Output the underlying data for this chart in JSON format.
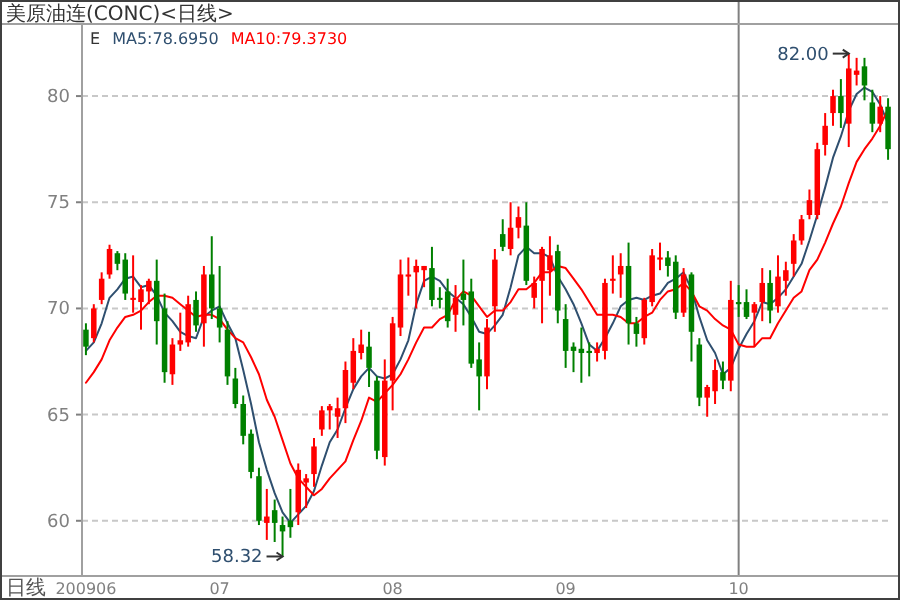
{
  "chart_data": {
    "type": "candlestick",
    "title": "美原油连(CONC)<日线>",
    "xlabel": "日线",
    "legend_title": "E",
    "legend": "top left",
    "grid": "y",
    "categories": [
      "200906",
      null,
      null,
      null,
      null,
      null,
      null,
      null,
      null,
      null,
      null,
      null,
      null,
      null,
      null,
      null,
      null,
      "07",
      null,
      null,
      null,
      null,
      null,
      null,
      null,
      null,
      null,
      null,
      null,
      null,
      null,
      null,
      null,
      null,
      null,
      null,
      null,
      null,
      null,
      "08",
      null,
      null,
      null,
      null,
      null,
      null,
      null,
      null,
      null,
      null,
      null,
      null,
      null,
      null,
      null,
      null,
      null,
      null,
      null,
      null,
      null,
      "09",
      null,
      null,
      null,
      null,
      null,
      null,
      null,
      null,
      null,
      null,
      null,
      null,
      null,
      null,
      null,
      null,
      null,
      null,
      null,
      null,
      null,
      "10",
      null,
      null,
      null,
      null,
      null,
      null,
      null,
      null,
      null,
      null,
      null,
      null,
      null,
      null,
      null,
      null,
      null,
      null,
      null
    ],
    "ohlc": [
      [
        69.0,
        69.3,
        67.8,
        68.2
      ],
      [
        68.6,
        70.2,
        68.4,
        70.0
      ],
      [
        70.4,
        71.7,
        70.2,
        71.4
      ],
      [
        71.6,
        73.0,
        71.4,
        72.8
      ],
      [
        72.6,
        72.7,
        71.8,
        72.1
      ],
      [
        72.3,
        72.6,
        70.4,
        70.7
      ],
      [
        70.4,
        72.5,
        69.8,
        70.5
      ],
      [
        70.3,
        71.1,
        69.0,
        70.9
      ],
      [
        70.8,
        71.4,
        70.2,
        71.3
      ],
      [
        71.3,
        72.3,
        68.3,
        69.4
      ],
      [
        70.0,
        70.7,
        66.5,
        67.0
      ],
      [
        66.9,
        68.6,
        66.4,
        68.3
      ],
      [
        68.3,
        69.8,
        68.0,
        68.5
      ],
      [
        68.4,
        70.6,
        68.2,
        70.2
      ],
      [
        70.4,
        70.8,
        68.9,
        69.2
      ],
      [
        69.3,
        72.0,
        68.2,
        71.6
      ],
      [
        71.6,
        73.4,
        69.5,
        70.0
      ],
      [
        70.0,
        72.0,
        68.4,
        69.1
      ],
      [
        69.0,
        69.4,
        66.4,
        66.8
      ],
      [
        66.7,
        67.2,
        65.3,
        65.5
      ],
      [
        65.5,
        65.9,
        63.6,
        64.0
      ],
      [
        64.1,
        64.3,
        62.0,
        62.3
      ],
      [
        62.1,
        62.5,
        59.8,
        60.0
      ],
      [
        59.9,
        61.5,
        59.1,
        60.2
      ],
      [
        60.5,
        61.0,
        59.0,
        59.9
      ],
      [
        59.8,
        60.2,
        58.32,
        59.5
      ],
      [
        60.0,
        61.5,
        59.2,
        59.7
      ],
      [
        60.4,
        62.7,
        59.8,
        62.4
      ],
      [
        61.8,
        62.2,
        60.6,
        62.0
      ],
      [
        62.2,
        63.9,
        61.6,
        63.5
      ],
      [
        64.3,
        65.4,
        64.0,
        65.2
      ],
      [
        65.2,
        65.5,
        64.3,
        65.4
      ],
      [
        64.9,
        65.8,
        63.9,
        65.3
      ],
      [
        65.3,
        67.5,
        64.6,
        67.1
      ],
      [
        66.5,
        68.6,
        66.2,
        68.0
      ],
      [
        67.9,
        69.0,
        67.6,
        68.3
      ],
      [
        68.2,
        68.9,
        66.3,
        67.2
      ],
      [
        66.6,
        66.8,
        62.9,
        63.3
      ],
      [
        63.0,
        67.6,
        62.6,
        66.6
      ],
      [
        66.6,
        69.6,
        65.2,
        69.3
      ],
      [
        69.1,
        72.3,
        68.7,
        71.6
      ],
      [
        71.5,
        72.4,
        70.6,
        71.6
      ],
      [
        71.7,
        72.3,
        70.0,
        72.0
      ],
      [
        71.8,
        72.0,
        71.0,
        72.0
      ],
      [
        71.9,
        72.9,
        70.1,
        70.4
      ],
      [
        70.5,
        71.0,
        70.0,
        70.4
      ],
      [
        70.8,
        71.4,
        69.1,
        69.4
      ],
      [
        69.7,
        71.1,
        68.9,
        70.5
      ],
      [
        70.7,
        72.3,
        69.2,
        70.4
      ],
      [
        70.8,
        71.4,
        67.2,
        67.4
      ],
      [
        67.6,
        68.4,
        65.2,
        66.8
      ],
      [
        66.8,
        69.5,
        66.2,
        69.1
      ],
      [
        70.1,
        72.8,
        68.9,
        72.3
      ],
      [
        73.5,
        74.2,
        72.7,
        72.9
      ],
      [
        72.8,
        75.0,
        72.5,
        73.8
      ],
      [
        73.8,
        74.8,
        73.3,
        74.3
      ],
      [
        73.9,
        75.0,
        71.1,
        71.3
      ],
      [
        70.5,
        71.5,
        70.0,
        71.2
      ],
      [
        71.3,
        72.9,
        69.3,
        72.8
      ],
      [
        71.8,
        73.4,
        70.6,
        72.5
      ],
      [
        72.7,
        73.0,
        69.3,
        69.9
      ],
      [
        69.5,
        70.2,
        67.2,
        68.0
      ],
      [
        68.2,
        68.4,
        67.0,
        68.0
      ],
      [
        68.1,
        69.1,
        66.5,
        67.9
      ],
      [
        68.0,
        68.4,
        66.8,
        67.9
      ],
      [
        67.9,
        68.4,
        67.5,
        68.1
      ],
      [
        68.0,
        71.4,
        67.6,
        71.2
      ],
      [
        71.3,
        72.5,
        70.7,
        71.4
      ],
      [
        71.6,
        72.6,
        70.5,
        72.0
      ],
      [
        72.0,
        73.1,
        68.3,
        69.3
      ],
      [
        69.3,
        69.6,
        68.2,
        68.8
      ],
      [
        68.6,
        70.5,
        68.3,
        70.4
      ],
      [
        70.3,
        72.8,
        70.1,
        72.5
      ],
      [
        72.3,
        73.1,
        71.8,
        72.4
      ],
      [
        72.4,
        72.7,
        71.5,
        72.0
      ],
      [
        72.2,
        72.5,
        69.5,
        69.8
      ],
      [
        69.8,
        71.9,
        69.6,
        71.6
      ],
      [
        71.6,
        71.7,
        67.5,
        68.9
      ],
      [
        68.3,
        68.6,
        65.4,
        65.8
      ],
      [
        65.8,
        66.4,
        64.9,
        66.3
      ],
      [
        66.1,
        67.6,
        65.5,
        67.1
      ],
      [
        67.0,
        67.5,
        66.2,
        66.6
      ],
      [
        66.6,
        71.3,
        66.1,
        70.4
      ],
      [
        70.3,
        71.1,
        69.6,
        70.2
      ],
      [
        70.3,
        70.9,
        69.5,
        69.6
      ],
      [
        69.8,
        70.3,
        68.2,
        70.2
      ],
      [
        70.3,
        71.9,
        69.4,
        71.2
      ],
      [
        71.2,
        71.8,
        69.3,
        69.9
      ],
      [
        70.1,
        72.5,
        69.8,
        71.5
      ],
      [
        71.3,
        72.2,
        70.6,
        71.8
      ],
      [
        72.1,
        73.5,
        71.5,
        73.2
      ],
      [
        73.2,
        74.4,
        73.0,
        74.2
      ],
      [
        74.4,
        75.6,
        74.2,
        75.1
      ],
      [
        74.4,
        77.8,
        74.2,
        77.5
      ],
      [
        77.7,
        79.2,
        77.2,
        78.6
      ],
      [
        79.2,
        80.3,
        78.6,
        80.0
      ],
      [
        80.0,
        80.8,
        78.5,
        79.2
      ],
      [
        78.7,
        82.0,
        77.6,
        81.3
      ],
      [
        81.0,
        81.8,
        80.5,
        81.2
      ],
      [
        81.4,
        81.8,
        79.8,
        80.5
      ],
      [
        79.7,
        80.3,
        78.3,
        78.7
      ],
      [
        78.7,
        80.0,
        78.3,
        79.5
      ],
      [
        79.5,
        79.9,
        77.0,
        77.5
      ]
    ],
    "colors": [
      "#008000",
      "#ff0000",
      "#ff0000",
      "#ff0000",
      "#008000",
      "#008000",
      "#ff0000",
      "#ff0000",
      "#ff0000",
      "#008000",
      "#008000",
      "#ff0000",
      "#ff0000",
      "#ff0000",
      "#008000",
      "#ff0000",
      "#008000",
      "#008000",
      "#008000",
      "#008000",
      "#008000",
      "#008000",
      "#008000",
      "#ff0000",
      "#008000",
      "#008000",
      "#008000",
      "#ff0000",
      "#ff0000",
      "#ff0000",
      "#ff0000",
      "#ff0000",
      "#ff0000",
      "#ff0000",
      "#ff0000",
      "#ff0000",
      "#008000",
      "#008000",
      "#ff0000",
      "#ff0000",
      "#ff0000",
      "#ff0000",
      "#ff0000",
      "#ff0000",
      "#008000",
      "#008000",
      "#008000",
      "#ff0000",
      "#008000",
      "#008000",
      "#008000",
      "#ff0000",
      "#ff0000",
      "#008000",
      "#ff0000",
      "#ff0000",
      "#008000",
      "#ff0000",
      "#ff0000",
      "#ff0000",
      "#008000",
      "#008000",
      "#008000",
      "#008000",
      "#008000",
      "#ff0000",
      "#ff0000",
      "#ff0000",
      "#ff0000",
      "#008000",
      "#008000",
      "#ff0000",
      "#ff0000",
      "#ff0000",
      "#008000",
      "#008000",
      "#ff0000",
      "#008000",
      "#008000",
      "#ff0000",
      "#ff0000",
      "#008000",
      "#ff0000",
      "#008000",
      "#008000",
      "#ff0000",
      "#ff0000",
      "#008000",
      "#ff0000",
      "#ff0000",
      "#ff0000",
      "#ff0000",
      "#ff0000",
      "#ff0000",
      "#ff0000",
      "#ff0000",
      "#008000",
      "#ff0000",
      "#ff0000",
      "#008000",
      "#008000",
      "#ff0000",
      "#008000"
    ],
    "series": [
      {
        "type": "line",
        "name": "MA5:78.6950",
        "color": "#2f4f6f",
        "values": [
          68.0,
          68.4,
          69.3,
          70.5,
          70.9,
          71.4,
          71.5,
          71.0,
          71.1,
          70.6,
          69.8,
          69.4,
          68.9,
          68.7,
          68.6,
          69.6,
          69.9,
          70.1,
          69.3,
          68.6,
          67.1,
          65.5,
          63.7,
          62.4,
          61.3,
          60.4,
          59.9,
          60.3,
          60.7,
          61.4,
          62.6,
          63.7,
          64.3,
          65.3,
          66.2,
          66.8,
          67.2,
          66.8,
          66.7,
          66.9,
          67.6,
          68.5,
          70.2,
          71.3,
          71.5,
          71.3,
          70.8,
          70.5,
          70.2,
          69.6,
          68.9,
          68.8,
          69.2,
          69.7,
          71.0,
          72.5,
          72.9,
          72.6,
          72.6,
          72.4,
          71.5,
          70.9,
          70.2,
          69.3,
          68.3,
          68.0,
          68.6,
          69.3,
          70.1,
          70.4,
          70.5,
          70.4,
          70.6,
          70.7,
          71.2,
          71.4,
          71.7,
          70.9,
          69.6,
          68.5,
          67.9,
          66.9,
          67.2,
          68.1,
          68.8,
          69.4,
          70.3,
          70.2,
          70.5,
          70.9,
          71.5,
          72.1,
          73.2,
          74.4,
          75.7,
          77.1,
          78.1,
          79.3,
          80.1,
          80.4,
          80.2,
          79.6,
          78.7
        ]
      },
      {
        "type": "line",
        "name": "MA10:79.3730",
        "color": "#ff0000",
        "values": [
          66.5,
          67.0,
          67.6,
          68.5,
          69.1,
          69.6,
          69.7,
          69.9,
          70.3,
          70.6,
          70.6,
          70.5,
          70.2,
          69.9,
          69.6,
          69.7,
          69.7,
          69.5,
          69.0,
          68.6,
          68.4,
          67.7,
          66.9,
          65.7,
          64.9,
          63.8,
          62.7,
          62.0,
          61.6,
          61.2,
          61.5,
          62.0,
          62.4,
          62.8,
          63.8,
          64.7,
          65.8,
          65.6,
          66.0,
          66.4,
          66.9,
          67.6,
          68.4,
          69.1,
          69.1,
          69.5,
          69.7,
          70.4,
          70.8,
          70.6,
          70.1,
          69.6,
          69.9,
          69.9,
          70.3,
          70.9,
          70.9,
          71.2,
          71.7,
          71.7,
          72.0,
          71.9,
          71.4,
          70.9,
          70.3,
          69.7,
          69.7,
          69.7,
          69.6,
          69.3,
          69.3,
          69.6,
          69.8,
          70.4,
          70.8,
          70.9,
          71.2,
          70.8,
          70.1,
          69.9,
          69.5,
          69.2,
          69.0,
          68.3,
          68.2,
          68.2,
          68.6,
          68.6,
          69.3,
          69.9,
          70.5,
          70.8,
          71.8,
          72.3,
          73.1,
          74.0,
          74.8,
          75.9,
          76.9,
          77.5,
          78.0,
          78.6,
          79.4
        ]
      }
    ],
    "ylim": [
      57.4,
      83.3
    ],
    "yticks": [
      60,
      65,
      70,
      75,
      80
    ],
    "ref_lines": [
      {
        "axis": "x",
        "value": "10",
        "color": "#808080"
      }
    ],
    "annotations": [
      "82.00",
      "58.32"
    ]
  }
}
